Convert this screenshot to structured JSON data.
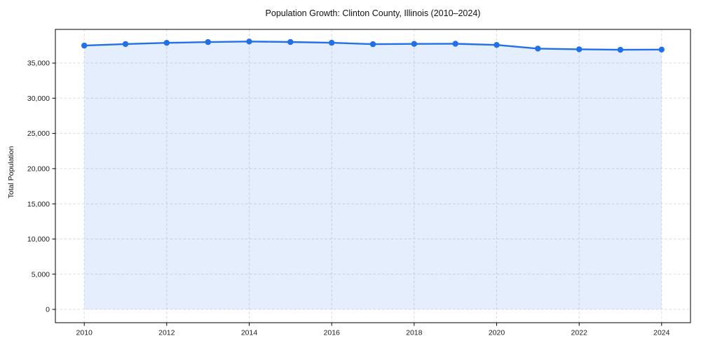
{
  "chart_data": {
    "type": "line",
    "title": "Population Growth: Clinton County, Illinois (2010–2024)",
    "xlabel": "",
    "ylabel": "Total Population",
    "x": [
      2010,
      2011,
      2012,
      2013,
      2014,
      2015,
      2016,
      2017,
      2018,
      2019,
      2020,
      2021,
      2022,
      2023,
      2024
    ],
    "values": [
      37480,
      37700,
      37870,
      37980,
      38060,
      37990,
      37880,
      37680,
      37720,
      37740,
      37570,
      37060,
      36960,
      36890,
      36920
    ],
    "x_ticks": [
      2010,
      2012,
      2014,
      2016,
      2018,
      2020,
      2022,
      2024
    ],
    "x_tick_labels": [
      "2010",
      "2012",
      "2014",
      "2016",
      "2018",
      "2020",
      "2022",
      "2024"
    ],
    "y_ticks": [
      0,
      5000,
      10000,
      15000,
      20000,
      25000,
      30000,
      35000
    ],
    "y_tick_labels": [
      "0",
      "5,000",
      "10,000",
      "15,000",
      "20,000",
      "25,000",
      "30,000",
      "35,000"
    ],
    "xlim": [
      2009.3,
      2024.7
    ],
    "ylim": [
      -1890,
      39780
    ],
    "grid": true,
    "grid_style": "dashed",
    "legend": "none",
    "marker": "circle",
    "fill_to_zero": true,
    "colors": {
      "line": "#2170e8",
      "marker": "#2170e8",
      "fill": "#2170e8",
      "fill_opacity": 0.12,
      "grid": "#d9dce1",
      "axis": "#000000",
      "text": "#1a1a1a"
    }
  }
}
